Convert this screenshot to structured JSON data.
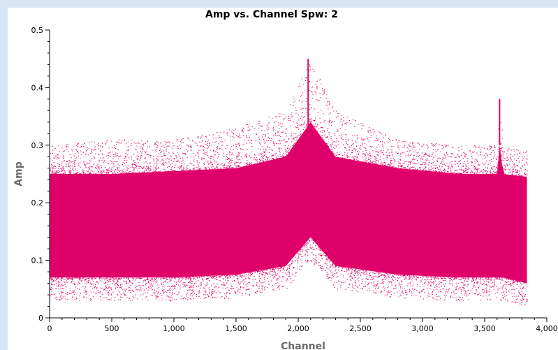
{
  "chart_data": {
    "type": "scatter",
    "title": "Amp vs. Channel Spw: 2",
    "xlabel": "Channel",
    "ylabel": "Amp",
    "xlim": [
      0,
      4000
    ],
    "ylim": [
      0,
      0.5
    ],
    "xticks": [
      0,
      500,
      1000,
      1500,
      2000,
      2500,
      3000,
      3500,
      4000
    ],
    "xtick_labels": [
      "0",
      "500",
      "1,000",
      "1,500",
      "2,000",
      "2,500",
      "3,000",
      "3,500",
      "4,000"
    ],
    "yticks": [
      0,
      0.1,
      0.2,
      0.3,
      0.4,
      0.5
    ],
    "ytick_labels": [
      "0",
      "0.1",
      "0.2",
      "0.3",
      "0.4",
      "0.5"
    ],
    "grid": false,
    "legend": "none",
    "point_color": "#e0006a",
    "channel_range": [
      0,
      3840
    ],
    "envelope": {
      "channel": [
        0,
        500,
        1000,
        1500,
        1900,
        2100,
        2300,
        2800,
        3300,
        3600,
        3620,
        3650,
        3840
      ],
      "upper_amp": [
        0.3,
        0.31,
        0.31,
        0.33,
        0.36,
        0.45,
        0.36,
        0.31,
        0.3,
        0.3,
        0.38,
        0.3,
        0.29
      ],
      "dense_upper_amp": [
        0.25,
        0.25,
        0.255,
        0.26,
        0.28,
        0.34,
        0.28,
        0.26,
        0.25,
        0.25,
        0.3,
        0.25,
        0.245
      ],
      "dense_lower_amp": [
        0.07,
        0.07,
        0.07,
        0.075,
        0.09,
        0.14,
        0.09,
        0.075,
        0.07,
        0.07,
        0.07,
        0.07,
        0.06
      ],
      "lower_amp": [
        0.03,
        0.03,
        0.03,
        0.035,
        0.05,
        0.1,
        0.05,
        0.035,
        0.03,
        0.03,
        0.03,
        0.03,
        0.02
      ]
    },
    "features": [
      {
        "channel": 2080,
        "peak_amp": 0.45
      },
      {
        "channel": 3620,
        "peak_amp": 0.38
      }
    ]
  }
}
